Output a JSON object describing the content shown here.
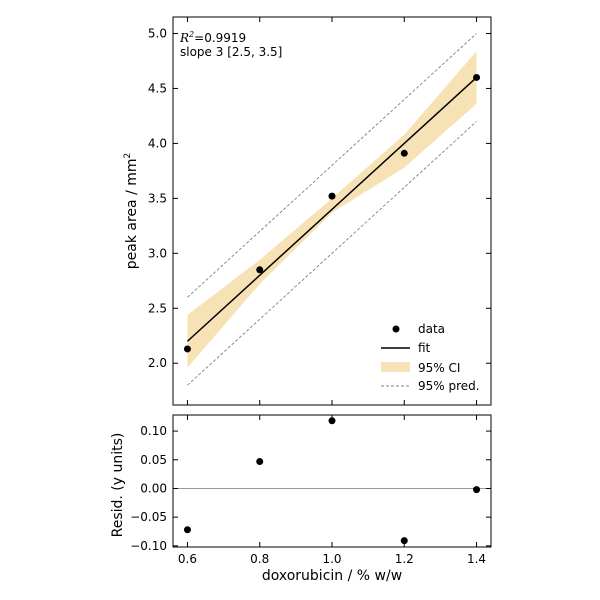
{
  "chart_data": [
    {
      "type": "line",
      "title": "",
      "xlabel": "",
      "ylabel": "peak area / mm²",
      "xlim": [
        0.56,
        1.44
      ],
      "ylim": [
        1.62,
        5.15
      ],
      "yticks": [
        2.0,
        2.5,
        3.0,
        3.5,
        4.0,
        4.5,
        5.0
      ],
      "ytick_labels": [
        "2.0",
        "2.5",
        "3.0",
        "3.5",
        "4.0",
        "4.5",
        "5.0"
      ],
      "annotation": {
        "r2_label": "R",
        "r2_exp": "2",
        "r2_value": "=0.9919",
        "slope_text": "slope 3 [2.5, 3.5]"
      },
      "data_points": {
        "x": [
          0.6,
          0.8,
          1.0,
          1.2,
          1.4
        ],
        "y": [
          2.13,
          2.85,
          3.52,
          3.91,
          4.6
        ]
      },
      "fit_line": {
        "x": [
          0.6,
          1.4
        ],
        "y": [
          2.2,
          4.6
        ]
      },
      "ci_band": {
        "x": [
          0.6,
          0.8,
          1.0,
          1.2,
          1.4
        ],
        "lower": [
          1.96,
          2.72,
          3.37,
          3.78,
          4.36
        ],
        "upper": [
          2.44,
          2.94,
          3.5,
          4.08,
          4.84
        ]
      },
      "pred_band": {
        "x": [
          0.6,
          1.4
        ],
        "lower": [
          1.8,
          4.2
        ],
        "upper": [
          2.6,
          5.0
        ]
      },
      "legend": {
        "placement": "lower-right",
        "entries": [
          "data",
          "fit",
          "95% CI",
          "95% pred."
        ]
      },
      "colors": {
        "points": "#000000",
        "fit": "#000000",
        "ci": "#f7e2b6",
        "pred": "#808080"
      }
    },
    {
      "type": "scatter",
      "title": "",
      "xlabel": "doxorubicin / % w/w",
      "ylabel": "Resid. (y units)",
      "xlim": [
        0.56,
        1.44
      ],
      "ylim": [
        -0.102,
        0.128
      ],
      "xticks": [
        0.6,
        0.8,
        1.0,
        1.2,
        1.4
      ],
      "xtick_labels": [
        "0.6",
        "0.8",
        "1.0",
        "1.2",
        "1.4"
      ],
      "yticks": [
        -0.1,
        -0.05,
        0.0,
        0.05,
        0.1
      ],
      "ytick_labels": [
        "−0.10",
        "−0.05",
        "0.00",
        "0.05",
        "0.10"
      ],
      "residuals": {
        "x": [
          0.6,
          0.8,
          1.0,
          1.2,
          1.4
        ],
        "y": [
          -0.072,
          0.047,
          0.118,
          -0.091,
          -0.002
        ]
      },
      "zero_line": 0.0
    }
  ]
}
